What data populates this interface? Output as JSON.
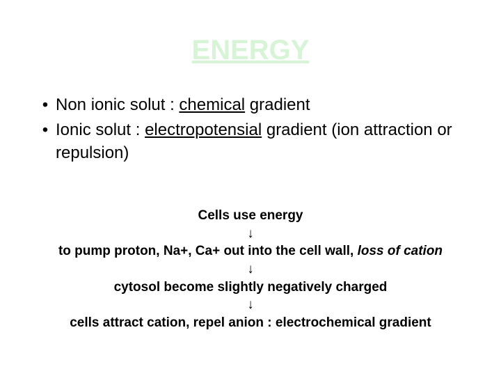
{
  "title": {
    "text": "ENERGY",
    "color": "#d7f4d7"
  },
  "bullets": [
    {
      "marker": "•",
      "pre": "Non ionic solut : ",
      "underlined": "chemical",
      "post": " gradient"
    },
    {
      "marker": "•",
      "pre": "Ionic solut : ",
      "underlined": "electropotensial",
      "post": " gradient (ion attraction or repulsion)"
    }
  ],
  "flow": {
    "line1": "Cells use energy",
    "arrow": "↓",
    "line2_plain": "to pump proton, Na+, Ca+ out into the cell wall, ",
    "line2_italic": "loss of cation",
    "line3": "cytosol become slightly negatively charged",
    "line4": "cells attract cation, repel anion : electrochemical gradient"
  },
  "colors": {
    "background": "#ffffff",
    "text": "#000000",
    "title": "#d7f4d7"
  }
}
